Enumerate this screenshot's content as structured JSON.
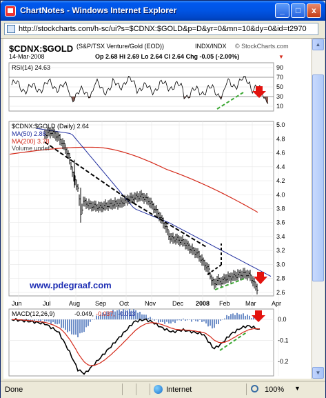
{
  "window": {
    "title": "ChartNotes - Windows Internet Explorer",
    "minimize": "_",
    "maximize": "□",
    "close": "x"
  },
  "address": {
    "url": "http://stockcharts.com/h-sc/ui?s=$CDNX:$GOLD&p=D&yr=0&mn=10&dy=0&id=t2970"
  },
  "status": {
    "left": "Done",
    "zone": "Internet",
    "zoom": "100%",
    "zoom_arrow": "▼"
  },
  "chart_header": {
    "symbol": "$CDNX:$GOLD",
    "description": "(S&P/TSX Venture/Gold (EOD))",
    "exchange": "INDX/INDX",
    "copyright": "© StockCharts.com",
    "date": "14-Mar-2008",
    "ohlc": "Op 2.68 Hi 2.69 Lo 2.64 Cl 2.64 Chg -0.05 (-2.00%)",
    "chg_arrow": "▼"
  },
  "rsi": {
    "label": "RSI(14) 24.63",
    "ticks": [
      "90",
      "70",
      "50",
      "30",
      "10"
    ]
  },
  "price": {
    "legend_main": "$CDNX:$GOLD (Daily) 2.64",
    "legend_ma50": "MA(50) 2.88",
    "legend_ma200": "MA(200) 3.78",
    "legend_volume": "Volume undef",
    "watermark": "www.pdegraaf.com",
    "ticks": [
      "5.0",
      "4.8",
      "4.6",
      "4.4",
      "4.2",
      "4.0",
      "3.8",
      "3.6",
      "3.4",
      "3.2",
      "3.0",
      "2.8",
      "2.6"
    ],
    "months": [
      "Jun",
      "Jul",
      "Aug",
      "Sep",
      "Oct",
      "Nov",
      "Dec",
      "2008",
      "Feb",
      "Mar",
      "Apr"
    ]
  },
  "macd": {
    "label_name": "MACD(12,26,9)",
    "label_v1": "-0.049,",
    "label_v2": "-0.037,",
    "label_v3": "-0.013",
    "ticks": [
      "0.0",
      "-0.1",
      "-0.2"
    ]
  },
  "colors": {
    "price": "#000000",
    "ma50": "#1f2d9e",
    "ma200": "#d42a1a",
    "rsi_fill": "#8b5e55",
    "trend": "#000000",
    "green_trend": "#3aa832",
    "alert": "#e3130f",
    "watermark": "#1f2fb4"
  }
}
